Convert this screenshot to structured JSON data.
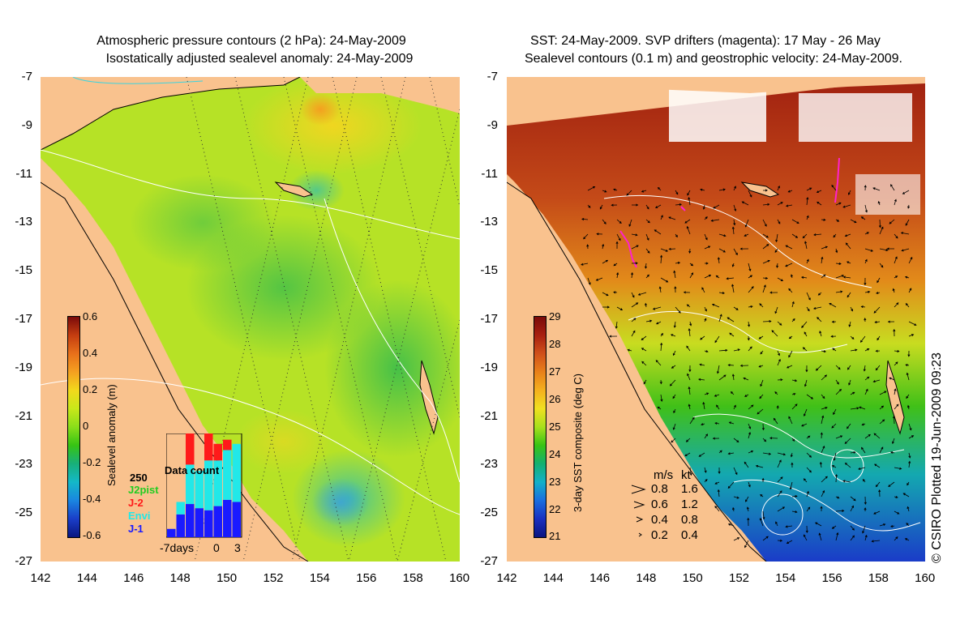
{
  "left": {
    "title_line1": "Atmospheric pressure contours (2 hPa): 24-May-2009",
    "title_line2": "Isostatically adjusted sealevel anomaly: 24-May-2009",
    "colorbar": {
      "label": "Sealevel anomaly (m)",
      "ticks": [
        "0.6",
        "0.4",
        "0.2",
        "0",
        "-0.2",
        "-0.4",
        "-0.6"
      ],
      "colors": [
        "#7a0a0a",
        "#c43d10",
        "#e8701a",
        "#f4a020",
        "#f2d81c",
        "#c8e81a",
        "#8ade1a",
        "#36c414",
        "#18b07a",
        "#14b8c8",
        "#1a86e0",
        "#1a3ec8",
        "#0a1680"
      ]
    },
    "data_count": {
      "title": "Data count",
      "ymax_label": "250",
      "legend": [
        {
          "name": "J2pist",
          "color": "#22cc22"
        },
        {
          "name": "J-2",
          "color": "#ff1a1a"
        },
        {
          "name": "Envi",
          "color": "#22e8e8"
        },
        {
          "name": "J-1",
          "color": "#1a1aff"
        }
      ],
      "xlabels": [
        "-7days",
        "0",
        "3"
      ],
      "bars": [
        {
          "j1": 20,
          "envi": 0,
          "j2": 0
        },
        {
          "j1": 55,
          "envi": 30,
          "j2": 0
        },
        {
          "j1": 80,
          "envi": 95,
          "j2": 80
        },
        {
          "j1": 70,
          "envi": 90,
          "j2": 0
        },
        {
          "j1": 65,
          "envi": 120,
          "j2": 65
        },
        {
          "j1": 75,
          "envi": 110,
          "j2": 40
        },
        {
          "j1": 90,
          "envi": 120,
          "j2": 25
        },
        {
          "j1": 85,
          "envi": 140,
          "j2": 0
        }
      ]
    }
  },
  "right": {
    "title_line1": "SST: 24-May-2009. SVP drifters (magenta): 17 May - 26 May",
    "title_line2": "Sealevel contours (0.1 m) and geostrophic velocity: 24-May-2009.",
    "colorbar": {
      "label": "3-day SST composite (deg C)",
      "ticks": [
        "29",
        "28",
        "27",
        "26",
        "25",
        "24",
        "23",
        "22",
        "21"
      ],
      "colors": [
        "#7a0a0a",
        "#a82010",
        "#d0501a",
        "#e8801a",
        "#f4b01e",
        "#f0e020",
        "#a8e01c",
        "#38c414",
        "#14b070",
        "#14b0c8",
        "#1a6ee0",
        "#1a30c0",
        "#0a1480"
      ]
    },
    "velocity_key": {
      "header_ms": "m/s",
      "header_kt": "kt",
      "rows": [
        {
          "ms": "0.8",
          "kt": "1.6"
        },
        {
          "ms": "0.6",
          "kt": "1.2"
        },
        {
          "ms": "0.4",
          "kt": "0.8"
        },
        {
          "ms": "0.2",
          "kt": "0.4"
        }
      ]
    }
  },
  "axes": {
    "y_ticks": [
      "-7",
      "-9",
      "-11",
      "-13",
      "-15",
      "-17",
      "-19",
      "-21",
      "-23",
      "-25",
      "-27"
    ],
    "x_ticks": [
      "142",
      "144",
      "146",
      "148",
      "150",
      "152",
      "154",
      "156",
      "158",
      "160"
    ]
  },
  "credit": "© CSIRO Plotted 19-Jun-2009 09:23"
}
